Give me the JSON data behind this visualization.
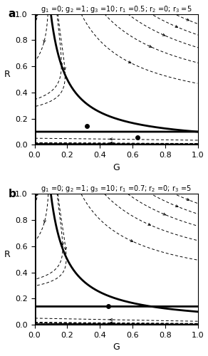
{
  "panels": [
    {
      "label": "a",
      "title": "g$_1$ =0; g$_2$ =1; g$_3$ =10; r$_1$ =0.5; r$_2$ =0; r$_3$ =5",
      "g1": 0,
      "g2": 1,
      "g3": 10,
      "r1": 0.5,
      "r2": 0,
      "r3": 5,
      "eq_points": [
        [
          0.0,
          1.0
        ],
        [
          0.32,
          0.145
        ],
        [
          0.63,
          0.055
        ]
      ]
    },
    {
      "label": "b",
      "title": "g$_1$ =0; g$_2$ =1; g$_3$ =10; r$_1$ =0.7; r$_2$ =0; r$_3$ =5",
      "g1": 0,
      "g2": 1,
      "g3": 10,
      "r1": 0.7,
      "r2": 0,
      "r3": 5,
      "eq_points": [
        [
          0.0,
          1.0
        ],
        [
          0.45,
          0.14
        ]
      ]
    }
  ],
  "xlim": [
    0,
    1
  ],
  "ylim": [
    0,
    1
  ],
  "xlabel": "G",
  "ylabel": "R",
  "figsize": [
    2.92,
    5.0
  ],
  "dpi": 100,
  "isocline_lw": 2.0,
  "n_diag_lines": 14,
  "diag_offsets": [
    -1.1,
    -0.95,
    -0.8,
    -0.65,
    -0.5,
    -0.35,
    -0.2,
    -0.05,
    0.1,
    0.25,
    0.4,
    0.55,
    0.7,
    0.85
  ],
  "arrow_scale": 0.045,
  "line_lw": 0.7
}
